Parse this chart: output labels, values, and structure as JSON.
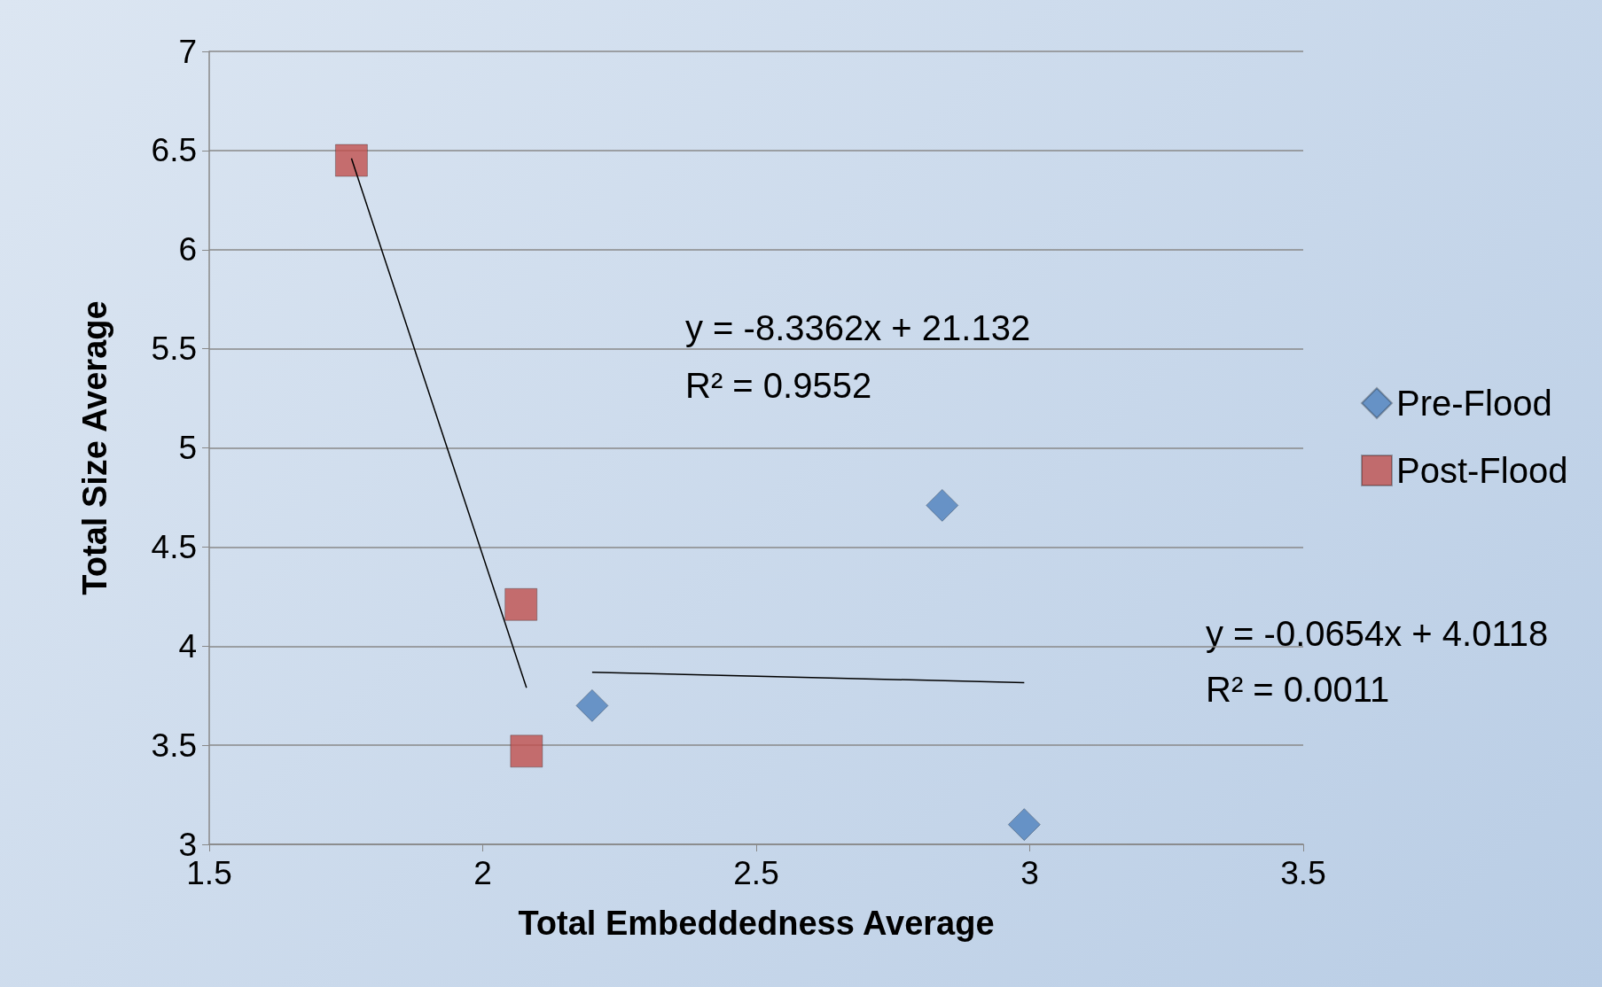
{
  "chart_data": {
    "type": "scatter",
    "xlabel": "Total Embeddedness Average",
    "ylabel": "Total Size Average",
    "xlim": [
      1.5,
      3.5
    ],
    "xticks": [
      1.5,
      2,
      2.5,
      3,
      3.5
    ],
    "ylim": [
      3,
      7
    ],
    "yticks": [
      3,
      3.5,
      4,
      4.5,
      5,
      5.5,
      6,
      6.5,
      7
    ],
    "grid": "y",
    "legend": "right",
    "series": [
      {
        "name": "Pre-Flood",
        "color": "#4f81bd",
        "marker": "diamond",
        "x": [
          2.84,
          2.2,
          2.99
        ],
        "values": [
          4.71,
          3.7,
          3.1
        ]
      },
      {
        "name": "Post-Flood",
        "color": "#c0504d",
        "marker": "square",
        "x": [
          1.76,
          2.07,
          2.08
        ],
        "values": [
          6.45,
          4.21,
          3.47
        ]
      },
      {
        "type": "line",
        "color": "#000000",
        "marker": "none",
        "x": [
          1.76,
          2.08
        ],
        "values": [
          6.46,
          3.79
        ]
      },
      {
        "type": "line",
        "color": "#000000",
        "marker": "none",
        "x": [
          2.2,
          2.99
        ],
        "values": [
          3.868,
          3.816
        ]
      }
    ],
    "annotations": [
      "y = -8.3362x + 21.132",
      "R² = 0.9552",
      "y = -0.0654x + 4.0118",
      "R² = 0.0011"
    ]
  }
}
